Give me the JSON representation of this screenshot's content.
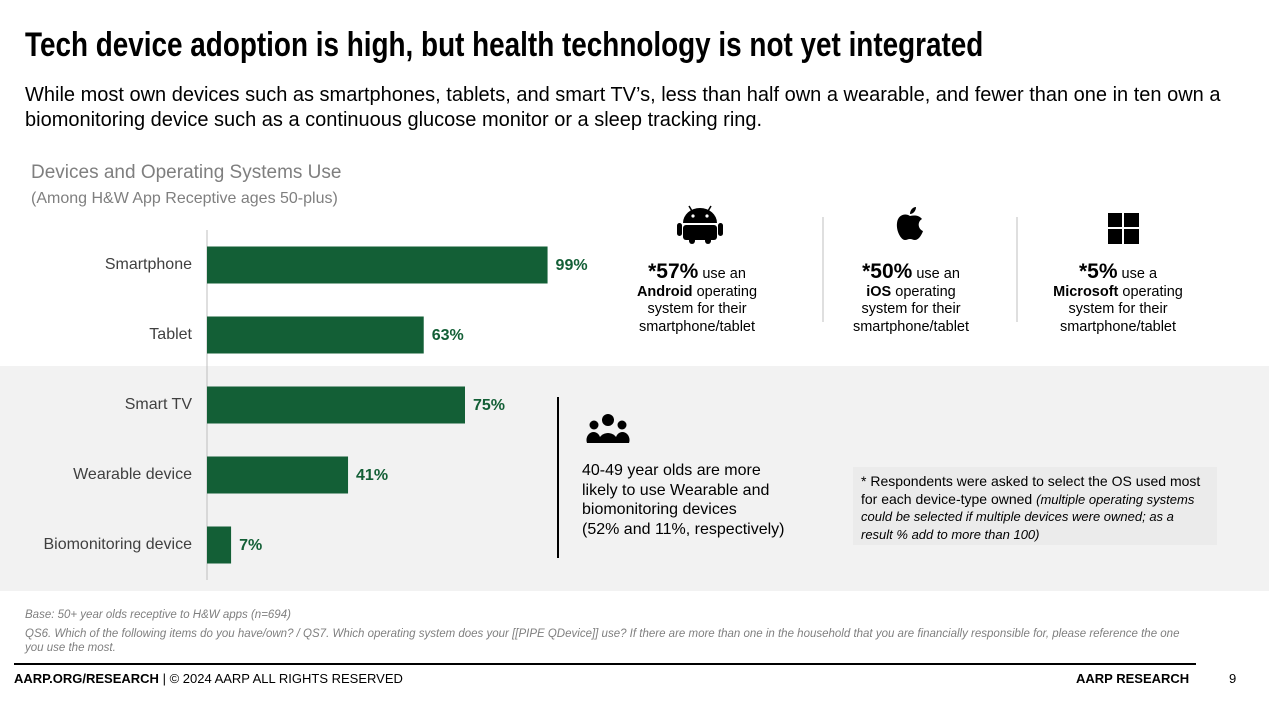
{
  "title": "Tech device adoption is high, but health technology is not yet integrated",
  "subtitle": "While most own devices such as smartphones, tablets, and smart TV’s, less than half own a wearable, and fewer than one in ten own a biomonitoring device such as a continuous glucose monitor or a sleep tracking ring.",
  "chart_data": {
    "type": "hbar",
    "title": "Devices and Operating Systems Use",
    "subtitle": "(Among H&W App Receptive ages 50-plus)",
    "categories": [
      "Smartphone",
      "Tablet",
      "Smart TV",
      "Wearable device",
      "Biomonitoring device"
    ],
    "values": [
      99,
      63,
      75,
      41,
      7
    ],
    "value_labels": [
      "99%",
      "63%",
      "75%",
      "41%",
      "7%"
    ],
    "color": "#135f36",
    "xlim": [
      0,
      100
    ]
  },
  "os_stats": [
    {
      "value": "*57%",
      "lead": "use an",
      "os": "Android",
      "rest": "operating",
      "line2": "system for their",
      "line3": "smartphone/tablet"
    },
    {
      "value": "*50%",
      "lead": "use an",
      "os": "iOS",
      "rest": "operating",
      "line2": "system for their",
      "line3": "smartphone/tablet"
    },
    {
      "value": "*5%",
      "lead": "use a",
      "os": "Microsoft",
      "rest": "operating",
      "line2": "system for their",
      "line3": "smartphone/tablet"
    }
  ],
  "callout": {
    "text": "40-49 year olds are more likely to use Wearable and biomonitoring devices",
    "detail": "(52% and 11%, respectively)"
  },
  "note": {
    "text": "* Respondents were asked to select the OS used most for each device-type owned",
    "italic": "(multiple operating systems could be selected if multiple devices were owned; as a result % add to more than 100)"
  },
  "footnotes": {
    "base": "Base: 50+ year olds receptive to H&W apps (n=694)",
    "question": "QS6. Which of the following items do you have/own? / QS7. Which operating system does your [[PIPE QDevice]] use? If there are more than one in the household that you are financially responsible for, please reference the one you use the most."
  },
  "footer": {
    "site": "AARP.ORG/RESEARCH",
    "rights": "| © 2024 AARP ALL RIGHTS RESERVED",
    "brand": "AARP RESEARCH",
    "page": "9"
  }
}
